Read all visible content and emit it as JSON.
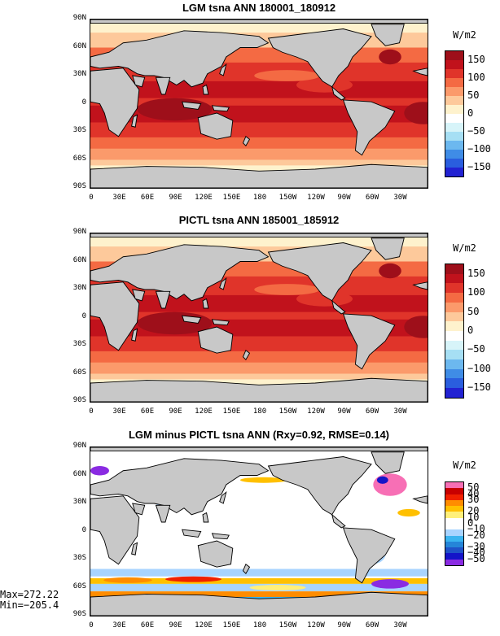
{
  "panels": [
    {
      "title": "LGM tsna ANN 180001_180912",
      "units": "W/m2",
      "colorbar": {
        "labels": [
          "150",
          "100",
          "50",
          "0",
          "−50",
          "−100",
          "−150"
        ],
        "colors": [
          "#9e0f1a",
          "#c1121c",
          "#e0342a",
          "#f46a43",
          "#fb9a6b",
          "#fdc99b",
          "#fef2cd",
          "#ffffff",
          "#d7f4f9",
          "#a6dff4",
          "#6cb8ef",
          "#3f8ce6",
          "#2a5ede",
          "#2222d2"
        ]
      }
    },
    {
      "title": "PICTL tsna ANN 185001_185912",
      "units": "W/m2",
      "colorbar": {
        "labels": [
          "150",
          "100",
          "50",
          "0",
          "−50",
          "−100",
          "−150"
        ],
        "colors": [
          "#9e0f1a",
          "#c1121c",
          "#e0342a",
          "#f46a43",
          "#fb9a6b",
          "#fdc99b",
          "#fef2cd",
          "#ffffff",
          "#d7f4f9",
          "#a6dff4",
          "#6cb8ef",
          "#3f8ce6",
          "#2a5ede",
          "#2222d2"
        ]
      }
    },
    {
      "title": "LGM minus PICTL tsna ANN (Rxy=0.92, RMSE=0.14)",
      "units": "W/m2",
      "colorbar": {
        "labels": [
          "50",
          "40",
          "30",
          "20",
          "10",
          "0",
          "−10",
          "−20",
          "−30",
          "−40",
          "−50"
        ],
        "colors": [
          "#f76fb5",
          "#c80000",
          "#f02000",
          "#ff8c00",
          "#ffc000",
          "#fff07a",
          "#ffffff",
          "#ffffff",
          "#a8d4ff",
          "#3ab4f0",
          "#2585d8",
          "#1f52c8",
          "#1414c8",
          "#8a2be2"
        ]
      }
    }
  ],
  "y_ticks": [
    "90N",
    "60N",
    "30N",
    "0",
    "30S",
    "60S",
    "90S"
  ],
  "x_ticks": [
    "0",
    "30E",
    "60E",
    "90E",
    "120E",
    "150E",
    "180",
    "150W",
    "120W",
    "90W",
    "60W",
    "30W"
  ],
  "stats": {
    "max": "Max=272.22",
    "min": "Min=−205.4"
  },
  "colors": {
    "land": "#c8c8c8",
    "ocean_main": "#e0342a",
    "ocean_tropics": "#c1121c",
    "ocean_mid": "#fb9a6b",
    "ocean_polar": "#fef2cd",
    "diff_base": "#ffffff"
  }
}
